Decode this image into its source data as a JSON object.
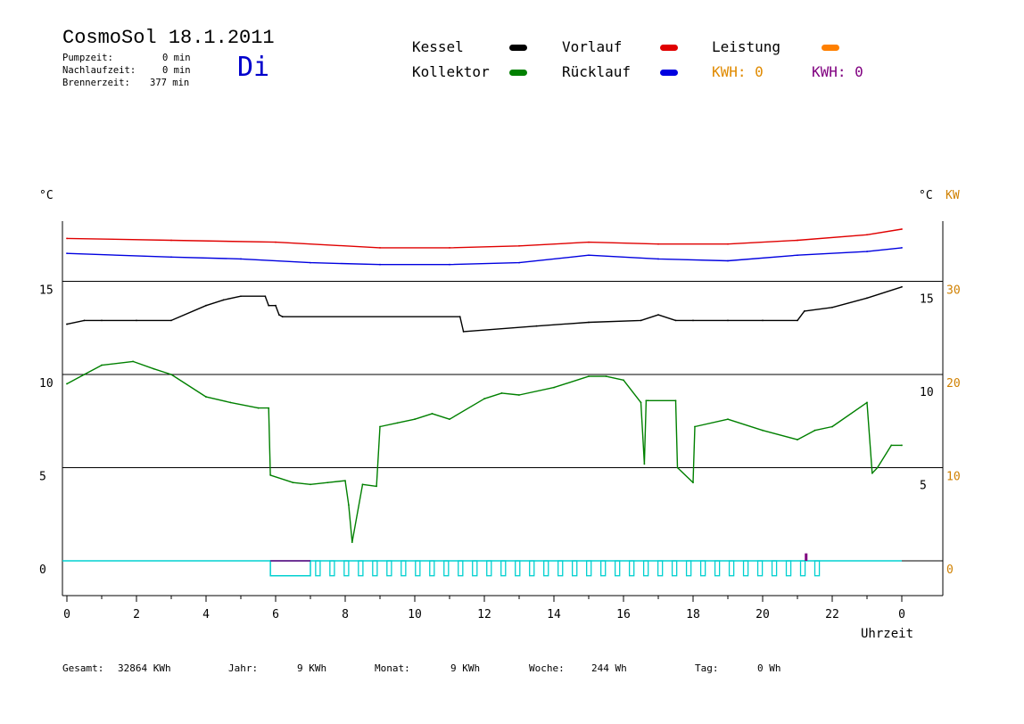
{
  "header": {
    "title": "CosmoSol 18.1.2011",
    "day": "Di",
    "pump_label": "Pumpzeit:",
    "pump_value": "0 min",
    "nachlauf_label": "Nachlaufzeit:",
    "nachlauf_value": "0 min",
    "brenner_label": "Brennerzeit:",
    "brenner_value": "377 min"
  },
  "legend": {
    "kessel": "Kessel",
    "kollektor": "Kollektor",
    "vorlauf": "Vorlauf",
    "ruecklauf": "Rücklauf",
    "leistung": "Leistung",
    "kwh_orange": "KWH: 0",
    "kwh_purple": "KWH: 0"
  },
  "colors": {
    "kessel": "#000000",
    "kollektor": "#008000",
    "vorlauf": "#e00000",
    "ruecklauf": "#0000e0",
    "leistung": "#ff8000",
    "kwh_purple": "#800080",
    "pump": "#00d0d0",
    "kw_axis": "#d08000"
  },
  "footer": {
    "gesamt_label": "Gesamt:",
    "gesamt_value": "32864 KWh",
    "jahr_label": "Jahr:",
    "jahr_value": "9 KWh",
    "monat_label": "Monat:",
    "monat_value": "9 KWh",
    "woche_label": "Woche:",
    "woche_value": "244 Wh",
    "tag_label": "Tag:",
    "tag_value": "0 Wh"
  },
  "chart_data": {
    "type": "line",
    "xlabel": "Uhrzeit",
    "x_range": [
      0,
      24
    ],
    "x_ticks": [
      "0",
      "2",
      "4",
      "6",
      "8",
      "10",
      "12",
      "14",
      "16",
      "18",
      "20",
      "22",
      "0"
    ],
    "left_axis": {
      "unit": "°C",
      "ticks": [
        "0",
        "5",
        "10",
        "15"
      ],
      "range": [
        -1.7,
        20
      ]
    },
    "right_axis_c": {
      "unit": "°C",
      "ticks": [
        "5",
        "10",
        "15"
      ]
    },
    "right_axis_kw": {
      "unit": "KW",
      "ticks": [
        "0",
        "10",
        "20",
        "30"
      ]
    },
    "series": [
      {
        "name": "Kessel",
        "color": "#000000",
        "x": [
          0,
          0.5,
          1,
          2,
          3,
          4,
          4.5,
          5,
          5.7,
          5.8,
          6.0,
          6.1,
          6.2,
          11.3,
          11.4,
          13.5,
          15,
          16.5,
          17,
          17.5,
          18,
          19,
          20,
          21,
          21.2,
          22,
          23,
          24
        ],
        "y": [
          12.7,
          12.9,
          12.9,
          12.9,
          12.9,
          13.7,
          14.0,
          14.2,
          14.2,
          13.7,
          13.7,
          13.2,
          13.1,
          13.1,
          12.3,
          12.6,
          12.8,
          12.9,
          13.2,
          12.9,
          12.9,
          12.9,
          12.9,
          12.9,
          13.4,
          13.6,
          14.1,
          14.7
        ]
      },
      {
        "name": "Kollektor",
        "color": "#008000",
        "x": [
          0,
          0.5,
          1,
          1.9,
          2.5,
          3,
          4,
          4.7,
          5.5,
          5.8,
          5.85,
          6.5,
          7,
          7.5,
          8,
          8.1,
          8.2,
          8.5,
          8.9,
          9.0,
          9.5,
          10,
          10.5,
          11,
          12,
          12.5,
          13,
          14,
          15,
          15.5,
          16,
          16.5,
          16.6,
          16.65,
          16.7,
          17.5,
          17.55,
          18,
          18.05,
          19,
          20,
          21,
          21.5,
          22,
          23,
          23.15,
          23.3,
          23.7,
          24
        ],
        "y": [
          9.5,
          10.0,
          10.5,
          10.7,
          10.3,
          10.0,
          8.8,
          8.5,
          8.2,
          8.2,
          4.6,
          4.2,
          4.1,
          4.2,
          4.3,
          3.0,
          1.0,
          4.1,
          4.0,
          7.2,
          7.4,
          7.6,
          7.9,
          7.6,
          8.7,
          9.0,
          8.9,
          9.3,
          9.9,
          9.9,
          9.7,
          8.5,
          5.2,
          8.6,
          8.6,
          8.6,
          5.0,
          4.2,
          7.2,
          7.6,
          7.0,
          6.5,
          7.0,
          7.2,
          8.5,
          4.7,
          5.0,
          6.2,
          6.2
        ]
      },
      {
        "name": "Vorlauf",
        "color": "#e00000",
        "x": [
          0,
          3,
          6,
          9,
          11,
          13,
          15,
          17,
          19,
          21,
          23,
          24
        ],
        "y": [
          17.3,
          17.2,
          17.1,
          16.8,
          16.8,
          16.9,
          17.1,
          17.0,
          17.0,
          17.2,
          17.5,
          17.8
        ]
      },
      {
        "name": "Rücklauf",
        "color": "#0000e0",
        "x": [
          0,
          3,
          5,
          7,
          9,
          11,
          13,
          15,
          17,
          19,
          21,
          23,
          24
        ],
        "y": [
          16.5,
          16.3,
          16.2,
          16.0,
          15.9,
          15.9,
          16.0,
          16.4,
          16.2,
          16.1,
          16.4,
          16.6,
          16.8
        ]
      }
    ],
    "pump_band": {
      "color": "#00d0d0",
      "base": 0,
      "bottom": -0.8,
      "solid_block": [
        5.85,
        7.0
      ],
      "pulses_start": 7.15,
      "pulses_end": 21.9,
      "pulse_spacing": 0.41,
      "pulse_width": 0.13
    },
    "leistung_spike": {
      "x": 21.25,
      "y": 0.4,
      "color": "#800080"
    },
    "grid": true
  }
}
